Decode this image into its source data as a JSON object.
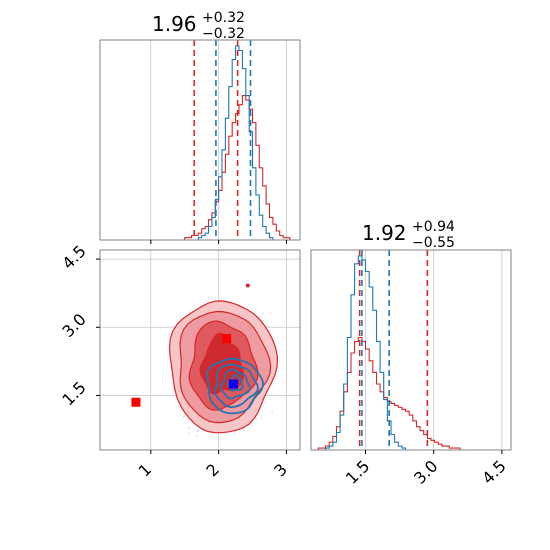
{
  "colors": {
    "red": "#d62728",
    "blue": "#1f77b4",
    "marker_blue": "#0000ff",
    "marker_red": "#ff0000"
  },
  "chart_data": {
    "type": "corner",
    "parameters": [
      {
        "median": "1.96",
        "upper_err": "+0.32",
        "lower_err": "−0.32"
      },
      {
        "median": "1.92",
        "upper_err": "+0.94",
        "lower_err": "−0.55"
      }
    ],
    "x1_range": [
      0.25,
      3.2
    ],
    "x2_range": [
      0.3,
      4.7
    ],
    "x1_ticks": [
      "1",
      "2",
      "3"
    ],
    "x1_tick_values": [
      1,
      2,
      3
    ],
    "x2_ticks": [
      "1.5",
      "3.0",
      "4.5"
    ],
    "x2_tick_values": [
      1.5,
      3.0,
      4.5
    ],
    "y2_ticks": [
      "1.5",
      "3.0",
      "4.5"
    ],
    "y2_tick_values": [
      1.5,
      3.0,
      4.5
    ],
    "grid": true,
    "quantiles": {
      "p1_red": [
        1.64,
        2.28
      ],
      "p1_blue": [
        1.96,
        2.47
      ],
      "p2_red": [
        1.37,
        2.86
      ],
      "p2_blue": [
        1.42,
        2.02
      ]
    },
    "markers": {
      "red": [
        [
          0.78,
          1.35
        ],
        [
          2.12,
          2.75
        ]
      ],
      "blue": [
        [
          2.22,
          1.75
        ]
      ]
    },
    "hist_p1_red": {
      "start": 0.25,
      "width": 0.05,
      "counts": [
        0,
        0,
        0,
        0,
        0,
        0,
        0,
        0,
        0,
        0,
        0,
        0,
        0,
        0,
        0,
        0,
        0,
        0,
        0,
        0,
        0,
        0,
        0,
        0,
        0,
        1,
        1,
        2,
        2,
        3,
        5,
        6,
        9,
        12,
        17,
        22,
        30,
        38,
        46,
        52,
        56,
        60,
        64,
        62,
        58,
        52,
        42,
        32,
        24,
        16,
        10,
        7,
        4,
        2,
        1,
        1,
        0,
        0,
        0
      ]
    },
    "hist_p1_blue": {
      "start": 0.25,
      "width": 0.05,
      "counts": [
        0,
        0,
        0,
        0,
        0,
        0,
        0,
        0,
        0,
        0,
        0,
        0,
        0,
        0,
        0,
        0,
        0,
        0,
        0,
        0,
        0,
        0,
        0,
        0,
        0,
        0,
        0,
        0,
        0,
        1,
        2,
        3,
        6,
        10,
        18,
        28,
        40,
        54,
        68,
        80,
        86,
        84,
        76,
        64,
        48,
        32,
        20,
        11,
        6,
        3,
        1,
        0,
        0,
        0,
        0,
        0,
        0,
        0,
        0
      ]
    },
    "hist_p2_red": {
      "start": 0.3,
      "width": 0.08,
      "counts": [
        0,
        0,
        1,
        1,
        2,
        4,
        7,
        12,
        20,
        30,
        40,
        50,
        56,
        58,
        56,
        52,
        46,
        40,
        34,
        30,
        27,
        25,
        24,
        23,
        22,
        21,
        20,
        18,
        15,
        12,
        10,
        8,
        6,
        5,
        4,
        3,
        2,
        2,
        1,
        1,
        1,
        0,
        0,
        0,
        0,
        0,
        0,
        0,
        0,
        0,
        0,
        0,
        0,
        0,
        0
      ]
    },
    "hist_p2_blue": {
      "start": 0.3,
      "width": 0.08,
      "counts": [
        0,
        0,
        0,
        0,
        1,
        2,
        4,
        9,
        18,
        34,
        58,
        80,
        96,
        100,
        98,
        92,
        84,
        72,
        56,
        40,
        26,
        15,
        8,
        4,
        2,
        1,
        0,
        0,
        0,
        0,
        0,
        0,
        0,
        0,
        0,
        0,
        0,
        0,
        0,
        0,
        0,
        0,
        0,
        0,
        0,
        0,
        0,
        0,
        0,
        0,
        0,
        0,
        0,
        0,
        0
      ]
    }
  }
}
